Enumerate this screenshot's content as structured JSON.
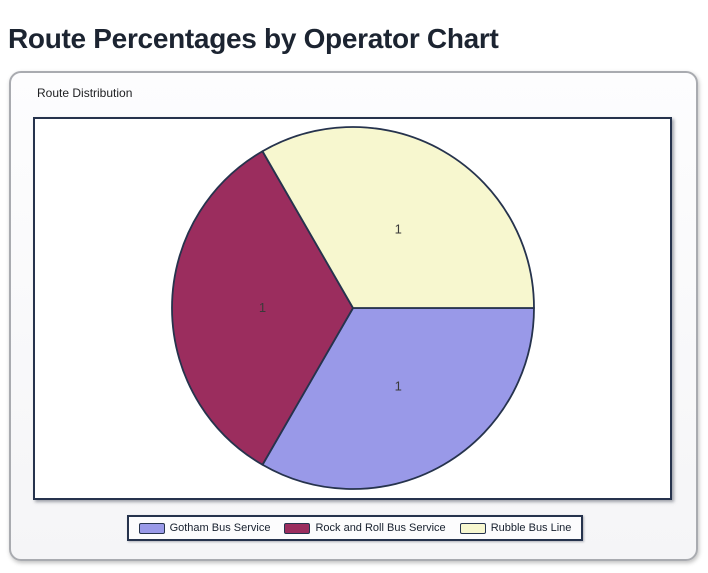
{
  "page": {
    "title": "Route Percentages by Operator Chart"
  },
  "group_box": {
    "label": "Route Distribution"
  },
  "chart_data": {
    "type": "pie",
    "title": "Route Distribution",
    "legend_position": "bottom",
    "start_angle_deg": 0,
    "direction": "clockwise",
    "slice_border_color": "#26334D",
    "data_label_color": "#3A3A3A",
    "slices": [
      {
        "label": "Gotham Bus Service",
        "value": 1,
        "data_label": "1",
        "color": "#9999E8"
      },
      {
        "label": "Rock and Roll Bus Service",
        "value": 1,
        "data_label": "1",
        "color": "#9B2D5E"
      },
      {
        "label": "Rubble Bus Line",
        "value": 1,
        "data_label": "1",
        "color": "#F7F7CF"
      }
    ]
  }
}
